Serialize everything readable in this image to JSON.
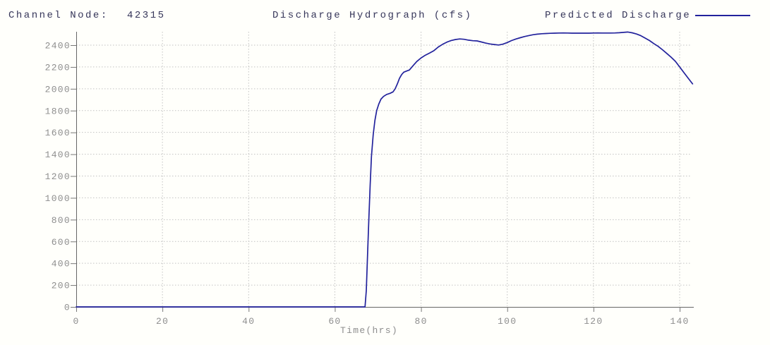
{
  "header": {
    "channel_node_label": "Channel Node:",
    "channel_node_value": "42315",
    "title": "Discharge Hydrograph (cfs)",
    "legend_label": "Predicted Discharge"
  },
  "colors": {
    "line": "#22229c",
    "header_text": "#36365a",
    "axis_text": "#8e8e8e",
    "axis_line": "#666666",
    "tick": "#777777",
    "gridline": "#c2c2c2",
    "background": "#fffffb"
  },
  "chart_data": {
    "type": "line",
    "title": "Discharge Hydrograph (cfs)",
    "subtitle_left_label": "Channel Node:",
    "subtitle_left_value": "42315",
    "xlabel": "Time(hrs)",
    "ylabel": "",
    "xlim": [
      0,
      143
    ],
    "ylim": [
      0,
      2523
    ],
    "xticks": [
      0,
      20,
      40,
      60,
      80,
      100,
      120,
      140
    ],
    "yticks": [
      0,
      200,
      400,
      600,
      800,
      1000,
      1200,
      1400,
      1600,
      1800,
      2000,
      2200,
      2400
    ],
    "grid": "dotted",
    "legend_position": "top-right",
    "series": [
      {
        "name": "Predicted Discharge",
        "color": "#22229c",
        "points": [
          [
            0,
            0
          ],
          [
            5,
            0
          ],
          [
            10,
            0
          ],
          [
            15,
            0
          ],
          [
            20,
            0
          ],
          [
            25,
            0
          ],
          [
            30,
            0
          ],
          [
            35,
            0
          ],
          [
            40,
            0
          ],
          [
            45,
            0
          ],
          [
            50,
            0
          ],
          [
            55,
            0
          ],
          [
            60,
            0
          ],
          [
            65,
            0
          ],
          [
            67,
            0
          ],
          [
            67.3,
            150
          ],
          [
            67.6,
            480
          ],
          [
            67.9,
            820
          ],
          [
            68.2,
            1120
          ],
          [
            68.5,
            1380
          ],
          [
            68.9,
            1580
          ],
          [
            69.3,
            1710
          ],
          [
            69.7,
            1800
          ],
          [
            70.2,
            1860
          ],
          [
            70.7,
            1905
          ],
          [
            71.3,
            1930
          ],
          [
            72,
            1948
          ],
          [
            72.8,
            1958
          ],
          [
            73.5,
            1972
          ],
          [
            74,
            2000
          ],
          [
            74.5,
            2045
          ],
          [
            75,
            2095
          ],
          [
            75.5,
            2130
          ],
          [
            76,
            2152
          ],
          [
            76.7,
            2163
          ],
          [
            77.3,
            2172
          ],
          [
            78,
            2205
          ],
          [
            79,
            2250
          ],
          [
            80,
            2283
          ],
          [
            81,
            2308
          ],
          [
            82,
            2328
          ],
          [
            83,
            2350
          ],
          [
            84,
            2383
          ],
          [
            85,
            2408
          ],
          [
            86,
            2428
          ],
          [
            87,
            2443
          ],
          [
            88,
            2452
          ],
          [
            89,
            2457
          ],
          [
            90,
            2454
          ],
          [
            91,
            2446
          ],
          [
            92,
            2441
          ],
          [
            93,
            2439
          ],
          [
            94,
            2429
          ],
          [
            95,
            2419
          ],
          [
            96,
            2411
          ],
          [
            97,
            2406
          ],
          [
            98,
            2401
          ],
          [
            99,
            2409
          ],
          [
            100,
            2424
          ],
          [
            101,
            2442
          ],
          [
            102,
            2456
          ],
          [
            103,
            2468
          ],
          [
            104,
            2479
          ],
          [
            105,
            2488
          ],
          [
            106,
            2496
          ],
          [
            107,
            2501
          ],
          [
            108,
            2505
          ],
          [
            109,
            2507
          ],
          [
            110,
            2509
          ],
          [
            111,
            2510
          ],
          [
            112,
            2511
          ],
          [
            113,
            2512
          ],
          [
            114,
            2511
          ],
          [
            115,
            2510
          ],
          [
            116,
            2510
          ],
          [
            117,
            2510
          ],
          [
            118,
            2510
          ],
          [
            119,
            2510
          ],
          [
            120,
            2511
          ],
          [
            121,
            2512
          ],
          [
            122,
            2511
          ],
          [
            123,
            2511
          ],
          [
            124,
            2511
          ],
          [
            125,
            2512
          ],
          [
            126,
            2514
          ],
          [
            127,
            2517
          ],
          [
            128,
            2520
          ],
          [
            129,
            2513
          ],
          [
            130,
            2502
          ],
          [
            131,
            2487
          ],
          [
            132,
            2465
          ],
          [
            133,
            2442
          ],
          [
            134,
            2414
          ],
          [
            135,
            2389
          ],
          [
            136,
            2358
          ],
          [
            137,
            2324
          ],
          [
            138,
            2290
          ],
          [
            139,
            2252
          ],
          [
            140,
            2200
          ],
          [
            141,
            2148
          ],
          [
            142,
            2096
          ],
          [
            143,
            2045
          ]
        ]
      }
    ]
  }
}
